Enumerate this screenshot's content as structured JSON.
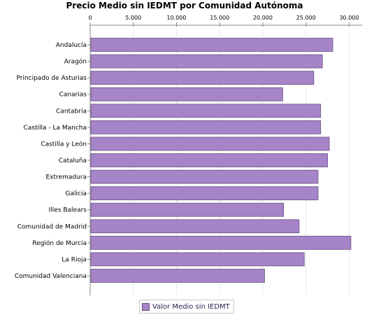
{
  "colors": {
    "bar_fill": "#a584c8",
    "bar_stroke": "#6a5080",
    "grid": "#d0d0d0",
    "axis": "#888888"
  },
  "chart_data": {
    "type": "bar",
    "orientation": "horizontal",
    "title": "Precio Medio sin IEDMT por Comunidad Autónoma",
    "categories": [
      "Andalucía",
      "Aragón",
      "Principado de Asturias",
      "Canarias",
      "Cantabria",
      "Castilla - La Mancha",
      "Castilla y León",
      "Cataluña",
      "Extremadura",
      "Galicia",
      "Illes Balears",
      "Comunidad de Madrid",
      "Región de Murcia",
      "La Rioja",
      "Comunidad Valenciana"
    ],
    "series": [
      {
        "name": "Valor Medio sin IEDMT",
        "values": [
          28100,
          26900,
          25900,
          22300,
          26700,
          26700,
          27700,
          27500,
          26400,
          26400,
          22400,
          24200,
          30200,
          24800,
          20200
        ]
      }
    ],
    "xlim": [
      0,
      31500
    ],
    "xticks": [
      0,
      5000,
      10000,
      15000,
      20000,
      25000,
      30000
    ],
    "xtick_labels": [
      "0",
      "5.000",
      "10.000",
      "15.000",
      "20.000",
      "25.000",
      "30.000"
    ],
    "grid": true,
    "legend_position": "bottom"
  }
}
